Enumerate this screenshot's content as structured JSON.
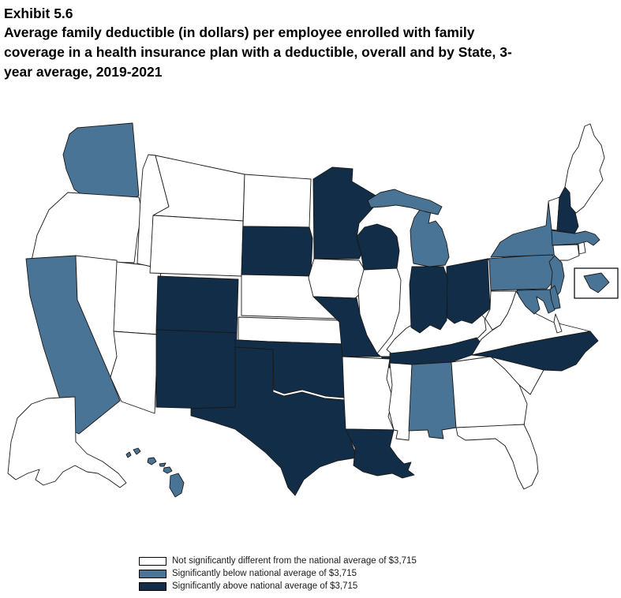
{
  "title": {
    "exhibit": "Exhibit 5.6",
    "text": "Average family deductible (in dollars) per employee enrolled with family coverage in a health insurance plan with a deductible, overall and by State, 3-year average, 2019-2021"
  },
  "legend": {
    "items": [
      {
        "id": "not_significantly_different",
        "label": "Not significantly different from the national average of $3,715",
        "color": "#FFFFFF"
      },
      {
        "id": "below_national_average",
        "label": "Significantly below national average of $3,715",
        "color": "#4A7495"
      },
      {
        "id": "above_national_average",
        "label": "Significantly above national average of $3,715",
        "color": "#112D47"
      }
    ]
  },
  "map": {
    "stroke_color": "#1A1A1A",
    "background": "#FFFFFF"
  },
  "chart_data": {
    "type": "heatmap",
    "subtype": "us_choropleth_map",
    "title": "Average family deductible (in dollars) per employee enrolled with family coverage in a health insurance plan with a deductible, overall and by State, 3-year average, 2019-2021",
    "national_average": "$3,715",
    "legend_position": "bottom-center",
    "categories": {
      "above_national_average": [
        "Colorado",
        "Indiana",
        "Louisiana",
        "Minnesota",
        "Missouri",
        "New Hampshire",
        "New Mexico",
        "North Carolina",
        "Ohio",
        "Oklahoma",
        "South Dakota",
        "Tennessee",
        "Texas",
        "Wisconsin"
      ],
      "below_national_average": [
        "Alabama",
        "California",
        "Delaware",
        "District of Columbia",
        "Hawaii",
        "Maryland",
        "Massachusetts",
        "Michigan",
        "New Jersey",
        "New York",
        "Pennsylvania",
        "Washington"
      ],
      "not_significantly_different": [
        "Alaska",
        "Arizona",
        "Arkansas",
        "Connecticut",
        "Florida",
        "Georgia",
        "Idaho",
        "Illinois",
        "Iowa",
        "Kansas",
        "Kentucky",
        "Maine",
        "Mississippi",
        "Montana",
        "Nebraska",
        "Nevada",
        "North Dakota",
        "Oregon",
        "Rhode Island",
        "South Carolina",
        "Utah",
        "Vermont",
        "Virginia",
        "West Virginia",
        "Wyoming"
      ]
    }
  }
}
